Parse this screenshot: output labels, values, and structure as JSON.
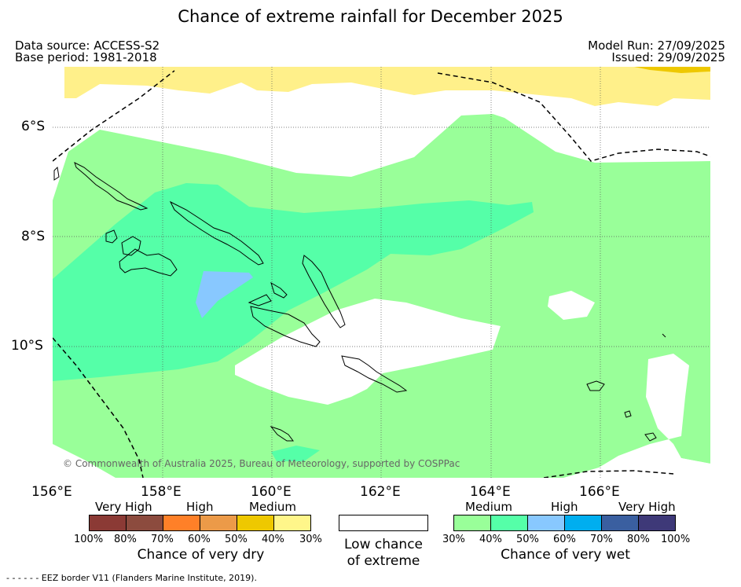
{
  "title": "Chance of extreme rainfall for December 2025",
  "header": {
    "data_source": "Data source: ACCESS-S2",
    "base_period": "Base period: 1981-2018",
    "model_run": "Model Run: 27/09/2025",
    "issued": "Issued: 29/09/2025"
  },
  "map": {
    "lat_labels": [
      "6°S",
      "8°S",
      "10°S"
    ],
    "lon_labels": [
      "156°E",
      "158°E",
      "160°E",
      "162°E",
      "164°E",
      "166°E"
    ],
    "copyright": "© Commonwealth of Australia 2025, Bureau of Meteorology, supported by COSPPac",
    "colors": {
      "medium_wet": "#99ff99",
      "high_wet": "#55ffa8",
      "very_high_wet_30": "#88c8ff",
      "medium_dry": "#fff08a",
      "high_dry": "#eec800"
    }
  },
  "legend": {
    "dry": {
      "labels": [
        "Very High",
        "High",
        "Medium"
      ],
      "ticks": [
        "100%",
        "80%",
        "70%",
        "60%",
        "50%",
        "40%",
        "30%"
      ],
      "caption": "Chance of very dry",
      "colors": [
        "#8b3a35",
        "#8c4b3e",
        "#ff8028",
        "#ec9a48",
        "#eec800",
        "#fff68a"
      ]
    },
    "low": {
      "caption_line1": "Low chance",
      "caption_line2": "of extreme",
      "color": "#ffffff"
    },
    "wet": {
      "labels": [
        "Medium",
        "High",
        "Very High"
      ],
      "ticks": [
        "30%",
        "40%",
        "50%",
        "60%",
        "70%",
        "80%",
        "100%"
      ],
      "caption": "Chance of very wet",
      "colors": [
        "#99ff99",
        "#55ffa8",
        "#88c8ff",
        "#00aeef",
        "#3a5fa0",
        "#3e3978"
      ]
    }
  },
  "footer": "- -  - -  - - EEZ border V11 (Flanders Marine Institute, 2019)."
}
